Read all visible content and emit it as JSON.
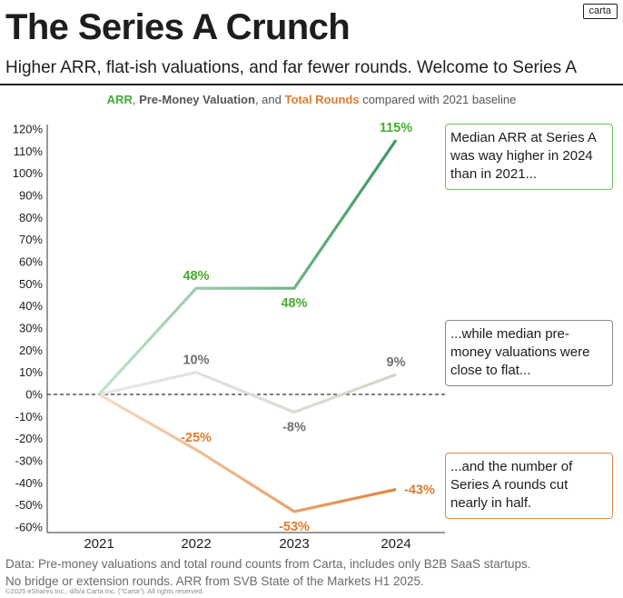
{
  "header": {
    "title": "The Series A Crunch",
    "subtitle": "Higher ARR, flat-ish valuations, and far fewer rounds. Welcome to Series A",
    "logo": "carta"
  },
  "legend": {
    "arr": "ARR",
    "sep1": ", ",
    "valuation": "Pre-Money Valuation",
    "sep2": ", and ",
    "rounds": "Total Rounds",
    "suffix": " compared with 2021 baseline"
  },
  "callouts": {
    "arr": "Median ARR at Series A was way higher in 2024 than in 2021...",
    "valuation": "...while median pre-money valuations were close to flat...",
    "rounds": "...and the number of Series A rounds cut nearly in half."
  },
  "footer": {
    "line1": "Data: Pre-money valuations and total round counts from Carta, includes only B2B SaaS startups.",
    "line2": "No bridge or extension rounds. ARR from SVB State of the Markets H1 2025.",
    "copyright": "©2025 eShares Inc., d/b/a Carta Inc. (\"Carta\"). All rights reserved."
  },
  "chart_data": {
    "type": "line",
    "x": [
      "2021",
      "2022",
      "2023",
      "2024"
    ],
    "ylim": [
      -60,
      120
    ],
    "yticks": [
      -60,
      -50,
      -40,
      -30,
      -20,
      -10,
      0,
      10,
      20,
      30,
      40,
      50,
      60,
      70,
      80,
      90,
      100,
      110,
      120
    ],
    "yticks_labels": [
      "-60%",
      "-50%",
      "-40%",
      "-30%",
      "-20%",
      "-10%",
      "0%",
      "10%",
      "20%",
      "30%",
      "40%",
      "50%",
      "60%",
      "70%",
      "80%",
      "90%",
      "100%",
      "110%",
      "120%"
    ],
    "baseline_dashed": true,
    "grid": false,
    "series": [
      {
        "name": "ARR",
        "values": [
          0,
          48,
          48,
          115
        ],
        "labels": [
          "",
          "48%",
          "48%",
          "115%"
        ],
        "label_pos": [
          "",
          "above",
          "below",
          "above"
        ],
        "color_start": "#c5e3cc",
        "color_end": "#3d9a5e",
        "label_color": "#47ad2c"
      },
      {
        "name": "Pre-Money Valuation",
        "values": [
          0,
          10,
          -8,
          9
        ],
        "labels": [
          "",
          "10%",
          "-8%",
          "9%"
        ],
        "label_pos": [
          "",
          "above",
          "below",
          "above"
        ],
        "color_start": "#e8e8e8",
        "color_end": "#cfd8c8",
        "label_color": "#707070"
      },
      {
        "name": "Total Rounds",
        "values": [
          0,
          -25,
          -53,
          -43
        ],
        "labels": [
          "",
          "-25%",
          "-53%",
          "-43%"
        ],
        "label_pos": [
          "",
          "above",
          "below",
          "right"
        ],
        "color_start": "#f6dcc4",
        "color_end": "#e0853f",
        "label_color": "#e07b2c"
      }
    ]
  }
}
